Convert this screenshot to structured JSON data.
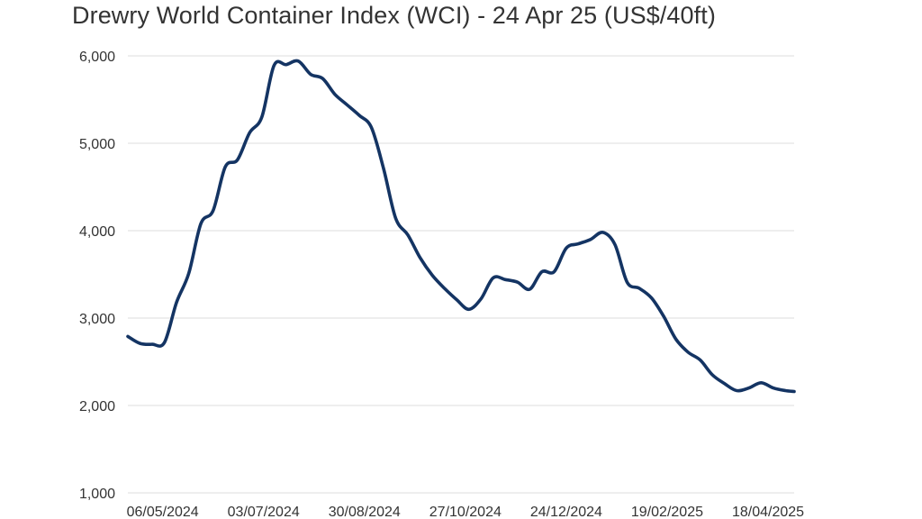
{
  "chart_data": {
    "type": "line",
    "title": "Drewry World Container Index (WCI) - 24 Apr 25 (US$/40ft)",
    "xlabel": "",
    "ylabel": "",
    "ylim": [
      1000,
      6000
    ],
    "yticks": [
      1000,
      2000,
      3000,
      4000,
      5000,
      6000
    ],
    "ytick_labels": [
      "1,000",
      "2,000",
      "3,000",
      "4,000",
      "5,000",
      "6,000"
    ],
    "x_range_days": [
      -20,
      363
    ],
    "xtick_days": [
      0,
      58,
      116,
      174,
      232,
      290,
      348
    ],
    "xtick_labels": [
      "06/05/2024",
      "03/07/2024",
      "30/08/2024",
      "27/10/2024",
      "24/12/2024",
      "19/02/2025",
      "18/04/2025"
    ],
    "grid": true,
    "legend": "none",
    "line_color": "#143463",
    "series": [
      {
        "name": "WCI (US$/40ft)",
        "x_days": [
          -20,
          -13,
          -6,
          1,
          8,
          15,
          22,
          29,
          36,
          43,
          50,
          57,
          64,
          71,
          78,
          85,
          92,
          99,
          106,
          113,
          120,
          127,
          134,
          141,
          148,
          155,
          162,
          169,
          176,
          183,
          190,
          197,
          204,
          211,
          218,
          225,
          232,
          239,
          246,
          253,
          260,
          267,
          274,
          281,
          288,
          295,
          302,
          309,
          316,
          323,
          330,
          337,
          344,
          351,
          358,
          363
        ],
        "values": [
          2790,
          2710,
          2700,
          2720,
          3180,
          3510,
          4080,
          4230,
          4730,
          4810,
          5120,
          5300,
          5890,
          5900,
          5940,
          5790,
          5740,
          5560,
          5440,
          5320,
          5180,
          4710,
          4140,
          3950,
          3690,
          3490,
          3340,
          3210,
          3100,
          3220,
          3460,
          3440,
          3410,
          3330,
          3530,
          3530,
          3800,
          3850,
          3900,
          3980,
          3840,
          3410,
          3340,
          3230,
          3020,
          2760,
          2610,
          2520,
          2350,
          2250,
          2170,
          2200,
          2260,
          2200,
          2170,
          2160
        ]
      }
    ]
  }
}
